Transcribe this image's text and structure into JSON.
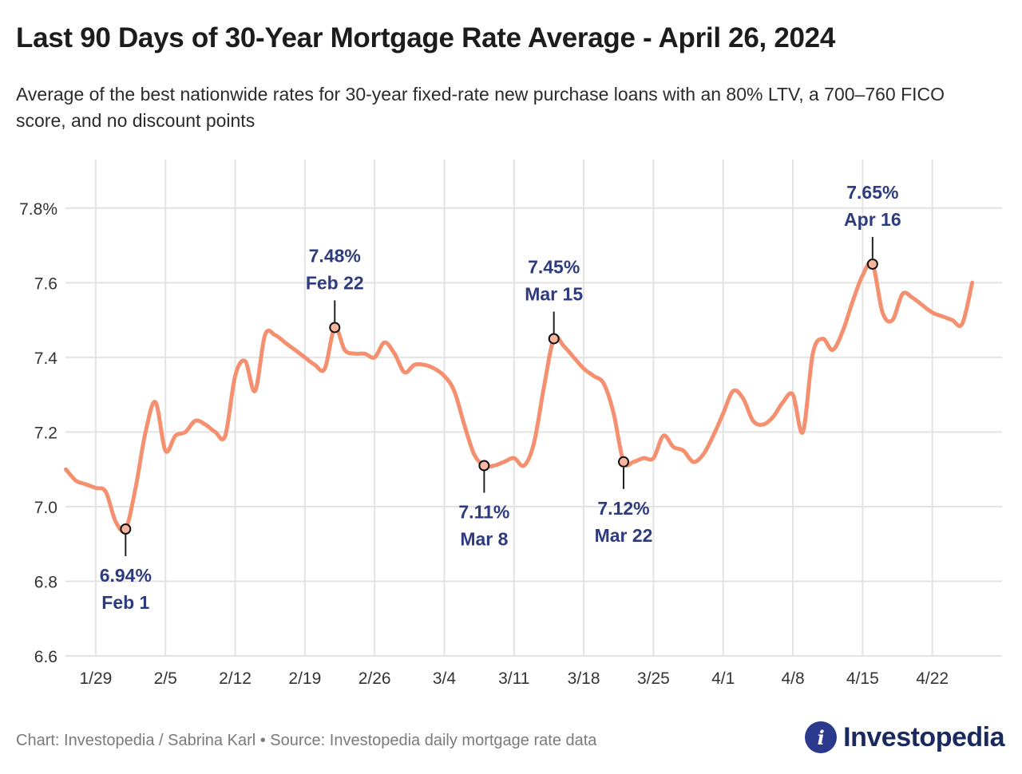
{
  "title": "Last 90 Days of 30-Year Mortgage Rate Average - April 26, 2024",
  "subtitle": "Average of the best nationwide rates for 30-year fixed-rate new purchase loans with an 80% LTV, a 700–760 FICO score, and no discount points",
  "footer": "Chart: Investopedia / Sabrina Karl • Source: Investopedia daily mortgage rate data",
  "logo": {
    "mark": "i",
    "text": "Investopedia"
  },
  "colors": {
    "line": "#f4906f",
    "annotation": "#2e3b7e",
    "grid": "#e3e3e3",
    "axis_text": "#333333"
  },
  "chart_data": {
    "type": "line",
    "title": "Last 90 Days of 30-Year Mortgage Rate Average - April 26, 2024",
    "xlabel": "",
    "ylabel": "",
    "ylim": [
      6.6,
      7.8
    ],
    "yticks": [
      6.6,
      6.8,
      7.0,
      7.2,
      7.4,
      7.6,
      7.8
    ],
    "ytick_labels": [
      "6.6",
      "6.8",
      "7.0",
      "7.2",
      "7.4",
      "7.6",
      "7.8%"
    ],
    "xlim": [
      "2024-01-25",
      "2024-04-29"
    ],
    "xticks": [
      "2024-01-29",
      "2024-02-05",
      "2024-02-12",
      "2024-02-19",
      "2024-02-26",
      "2024-03-04",
      "2024-03-11",
      "2024-03-18",
      "2024-03-25",
      "2024-04-01",
      "2024-04-08",
      "2024-04-15",
      "2024-04-22"
    ],
    "xtick_labels": [
      "1/29",
      "2/5",
      "2/12",
      "2/19",
      "2/26",
      "3/4",
      "3/11",
      "3/18",
      "3/25",
      "4/1",
      "4/8",
      "4/15",
      "4/22"
    ],
    "grid": true,
    "x": [
      "2024-01-26",
      "2024-01-27",
      "2024-01-28",
      "2024-01-29",
      "2024-01-30",
      "2024-01-31",
      "2024-02-01",
      "2024-02-02",
      "2024-02-03",
      "2024-02-04",
      "2024-02-05",
      "2024-02-06",
      "2024-02-07",
      "2024-02-08",
      "2024-02-09",
      "2024-02-10",
      "2024-02-11",
      "2024-02-12",
      "2024-02-13",
      "2024-02-14",
      "2024-02-15",
      "2024-02-16",
      "2024-02-17",
      "2024-02-18",
      "2024-02-19",
      "2024-02-20",
      "2024-02-21",
      "2024-02-22",
      "2024-02-23",
      "2024-02-24",
      "2024-02-25",
      "2024-02-26",
      "2024-02-27",
      "2024-02-28",
      "2024-02-29",
      "2024-03-01",
      "2024-03-02",
      "2024-03-03",
      "2024-03-04",
      "2024-03-05",
      "2024-03-06",
      "2024-03-07",
      "2024-03-08",
      "2024-03-09",
      "2024-03-10",
      "2024-03-11",
      "2024-03-12",
      "2024-03-13",
      "2024-03-14",
      "2024-03-15",
      "2024-03-16",
      "2024-03-17",
      "2024-03-18",
      "2024-03-19",
      "2024-03-20",
      "2024-03-21",
      "2024-03-22",
      "2024-03-23",
      "2024-03-24",
      "2024-03-25",
      "2024-03-26",
      "2024-03-27",
      "2024-03-28",
      "2024-03-29",
      "2024-03-30",
      "2024-03-31",
      "2024-04-01",
      "2024-04-02",
      "2024-04-03",
      "2024-04-04",
      "2024-04-05",
      "2024-04-06",
      "2024-04-07",
      "2024-04-08",
      "2024-04-09",
      "2024-04-10",
      "2024-04-11",
      "2024-04-12",
      "2024-04-13",
      "2024-04-14",
      "2024-04-15",
      "2024-04-16",
      "2024-04-17",
      "2024-04-18",
      "2024-04-19",
      "2024-04-20",
      "2024-04-21",
      "2024-04-22",
      "2024-04-23",
      "2024-04-24",
      "2024-04-25",
      "2024-04-26"
    ],
    "series": [
      {
        "values": [
          7.1,
          7.07,
          7.06,
          7.05,
          7.04,
          6.96,
          6.94,
          7.05,
          7.2,
          7.28,
          7.15,
          7.19,
          7.2,
          7.23,
          7.22,
          7.2,
          7.19,
          7.35,
          7.39,
          7.31,
          7.46,
          7.46,
          7.44,
          7.42,
          7.4,
          7.38,
          7.37,
          7.48,
          7.42,
          7.41,
          7.41,
          7.4,
          7.44,
          7.41,
          7.36,
          7.38,
          7.38,
          7.37,
          7.35,
          7.31,
          7.22,
          7.14,
          7.11,
          7.11,
          7.12,
          7.13,
          7.11,
          7.17,
          7.32,
          7.45,
          7.43,
          7.4,
          7.37,
          7.35,
          7.33,
          7.25,
          7.12,
          7.12,
          7.13,
          7.13,
          7.19,
          7.16,
          7.15,
          7.12,
          7.14,
          7.19,
          7.25,
          7.31,
          7.29,
          7.23,
          7.22,
          7.24,
          7.28,
          7.3,
          7.2,
          7.41,
          7.45,
          7.42,
          7.47,
          7.55,
          7.62,
          7.65,
          7.52,
          7.5,
          7.57,
          7.56,
          7.54,
          7.52,
          7.51,
          7.5,
          7.49,
          7.6
        ]
      }
    ],
    "annotations": [
      {
        "date": "2024-02-01",
        "value": 6.94,
        "label": "6.94%",
        "sublabel": "Feb 1",
        "position": "below"
      },
      {
        "date": "2024-02-22",
        "value": 7.48,
        "label": "7.48%",
        "sublabel": "Feb 22",
        "position": "above"
      },
      {
        "date": "2024-03-08",
        "value": 7.11,
        "label": "7.11%",
        "sublabel": "Mar 8",
        "position": "below"
      },
      {
        "date": "2024-03-15",
        "value": 7.45,
        "label": "7.45%",
        "sublabel": "Mar 15",
        "position": "above"
      },
      {
        "date": "2024-03-22",
        "value": 7.12,
        "label": "7.12%",
        "sublabel": "Mar 22",
        "position": "below"
      },
      {
        "date": "2024-04-16",
        "value": 7.65,
        "label": "7.65%",
        "sublabel": "Apr 16",
        "position": "above"
      }
    ]
  }
}
